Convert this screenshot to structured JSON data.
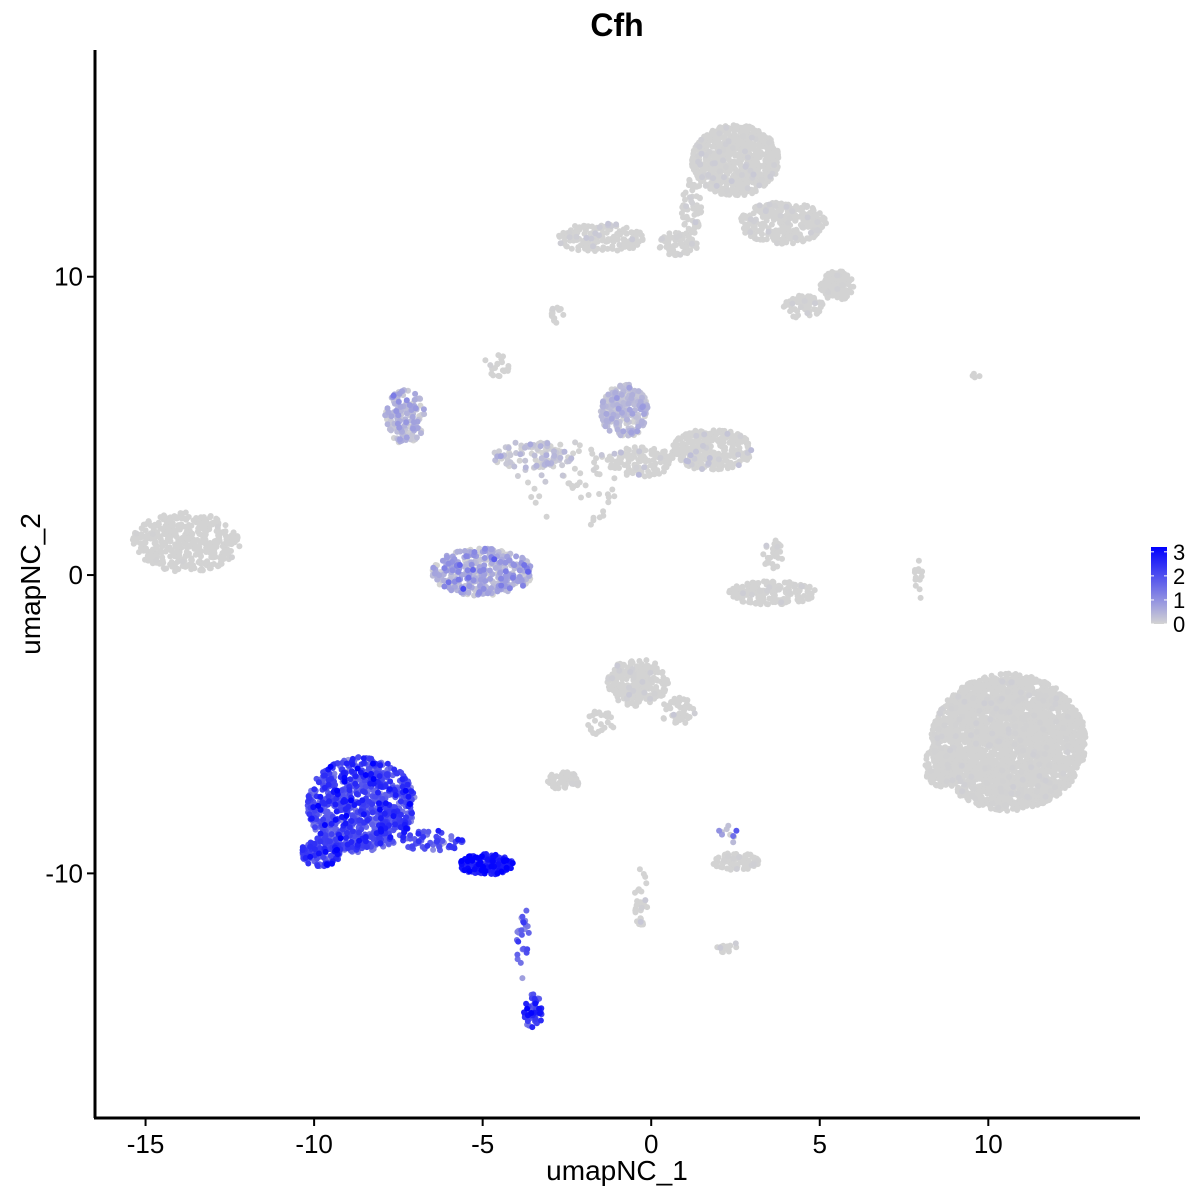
{
  "chart_data": {
    "type": "scatter",
    "title": "Cfh",
    "xlabel": "umapNC_1",
    "ylabel": "umapNC_2",
    "xlim": [
      -16.5,
      14.5
    ],
    "ylim": [
      -18.2,
      17.6
    ],
    "xticks": [
      -15,
      -10,
      -5,
      0,
      5,
      10
    ],
    "xtick_labels": [
      "-15",
      "-10",
      "-5",
      "0",
      "5",
      "10"
    ],
    "yticks": [
      -10,
      0,
      10
    ],
    "ytick_labels": [
      "-10",
      "0",
      "10"
    ],
    "grid": false,
    "legend": {
      "placement": "right",
      "type": "colorbar",
      "range": [
        0,
        3.2
      ],
      "ticks": [
        0,
        1,
        2,
        3
      ],
      "tick_labels": [
        "0",
        "1",
        "2",
        "3"
      ],
      "low_color": "#d3d3d3",
      "high_color": "#0000ff"
    },
    "point_color_low": "#d3d3d3",
    "point_color_high": "#0000ff",
    "clusters": [
      {
        "id": "top-right-cluster",
        "cx": 2.5,
        "cy": 13.9,
        "rx": 1.3,
        "ry": 1.2,
        "n": 700,
        "expr": 0.04
      },
      {
        "id": "top-left-arm",
        "cx": -1.5,
        "cy": 11.3,
        "rx": 1.3,
        "ry": 0.5,
        "n": 150,
        "expr": 0.1
      },
      {
        "id": "top-bridge",
        "cx": 0.8,
        "cy": 11.1,
        "rx": 0.6,
        "ry": 0.4,
        "n": 70,
        "expr": 0.03
      },
      {
        "id": "top-stem",
        "cx": 1.2,
        "cy": 12.4,
        "rx": 0.3,
        "ry": 1.0,
        "n": 60,
        "expr": 0.03
      },
      {
        "id": "top-right-arm",
        "cx": 3.9,
        "cy": 11.8,
        "rx": 1.3,
        "ry": 0.7,
        "n": 300,
        "expr": 0.03
      },
      {
        "id": "top-right-tip",
        "cx": 5.5,
        "cy": 9.7,
        "rx": 0.5,
        "ry": 0.5,
        "n": 130,
        "expr": 0.02
      },
      {
        "id": "top-right-tail",
        "cx": 4.5,
        "cy": 9.0,
        "rx": 0.6,
        "ry": 0.4,
        "n": 60,
        "expr": 0.02
      },
      {
        "id": "small-top-mid",
        "cx": -2.8,
        "cy": 8.7,
        "rx": 0.2,
        "ry": 0.3,
        "n": 15,
        "expr": 0.0
      },
      {
        "id": "left-outlier-cluster",
        "cx": -13.8,
        "cy": 1.1,
        "rx": 1.6,
        "ry": 1.0,
        "n": 400,
        "expr": 0.0
      },
      {
        "id": "upper-left-arc",
        "cx": -7.3,
        "cy": 5.3,
        "rx": 0.6,
        "ry": 0.9,
        "n": 150,
        "expr": 0.35
      },
      {
        "id": "center-arc",
        "cx": -5.0,
        "cy": 0.1,
        "rx": 1.5,
        "ry": 0.8,
        "n": 400,
        "expr": 0.5
      },
      {
        "id": "center-stem",
        "cx": -3.5,
        "cy": 4.0,
        "rx": 1.2,
        "ry": 0.5,
        "n": 100,
        "expr": 0.2
      },
      {
        "id": "center-scatter",
        "cx": -2.5,
        "cy": 3.0,
        "rx": 1.5,
        "ry": 1.5,
        "n": 60,
        "expr": 0.1
      },
      {
        "id": "upper-center-cluster",
        "cx": -0.8,
        "cy": 5.5,
        "rx": 0.7,
        "ry": 0.9,
        "n": 250,
        "expr": 0.25
      },
      {
        "id": "upper-center-right",
        "cx": 1.8,
        "cy": 4.2,
        "rx": 1.2,
        "ry": 0.7,
        "n": 300,
        "expr": 0.12
      },
      {
        "id": "upper-center-band",
        "cx": -0.3,
        "cy": 3.8,
        "rx": 1.0,
        "ry": 0.5,
        "n": 120,
        "expr": 0.15
      },
      {
        "id": "small-right-cluster",
        "cx": 3.6,
        "cy": -0.6,
        "rx": 1.3,
        "ry": 0.4,
        "n": 180,
        "expr": 0.02
      },
      {
        "id": "small-right-top",
        "cx": 3.6,
        "cy": 0.7,
        "rx": 0.3,
        "ry": 0.5,
        "n": 30,
        "expr": 0.05
      },
      {
        "id": "big-right-cluster",
        "cx": 10.6,
        "cy": -5.6,
        "rx": 2.3,
        "ry": 2.3,
        "n": 2600,
        "expr": 0.01
      },
      {
        "id": "big-right-left-edge",
        "cx": 8.6,
        "cy": -6.4,
        "rx": 0.5,
        "ry": 0.7,
        "n": 150,
        "expr": 0.01
      },
      {
        "id": "bottom-left-blob",
        "cx": -8.6,
        "cy": -7.7,
        "rx": 1.6,
        "ry": 1.6,
        "n": 850,
        "expr": 2.0
      },
      {
        "id": "bottom-left-lobe",
        "cx": -9.8,
        "cy": -9.3,
        "rx": 0.6,
        "ry": 0.5,
        "n": 120,
        "expr": 2.0
      },
      {
        "id": "bottom-left-tail",
        "cx": -4.9,
        "cy": -9.7,
        "rx": 0.8,
        "ry": 0.35,
        "n": 180,
        "expr": 2.5
      },
      {
        "id": "bottom-left-neck",
        "cx": -6.5,
        "cy": -8.9,
        "rx": 1.0,
        "ry": 0.35,
        "n": 60,
        "expr": 1.8
      },
      {
        "id": "bottom-stem",
        "cx": -3.8,
        "cy": -12.3,
        "rx": 0.2,
        "ry": 1.3,
        "n": 25,
        "expr": 1.5
      },
      {
        "id": "bottom-tip",
        "cx": -3.5,
        "cy": -14.6,
        "rx": 0.3,
        "ry": 0.6,
        "n": 50,
        "expr": 2.2
      },
      {
        "id": "lower-center-cluster",
        "cx": -0.4,
        "cy": -3.6,
        "rx": 0.9,
        "ry": 0.8,
        "n": 250,
        "expr": 0.05
      },
      {
        "id": "lower-center-arm",
        "cx": 0.8,
        "cy": -4.6,
        "rx": 0.5,
        "ry": 0.5,
        "n": 50,
        "expr": 0.1
      },
      {
        "id": "lower-center-left",
        "cx": -2.6,
        "cy": -6.9,
        "rx": 0.5,
        "ry": 0.3,
        "n": 60,
        "expr": 0.0
      },
      {
        "id": "lower-center-stem",
        "cx": -1.5,
        "cy": -5.0,
        "rx": 0.4,
        "ry": 0.5,
        "n": 25,
        "expr": 0.0
      },
      {
        "id": "lower-right-small",
        "cx": 2.5,
        "cy": -9.6,
        "rx": 0.7,
        "ry": 0.3,
        "n": 80,
        "expr": 0.02
      },
      {
        "id": "lower-right-stem",
        "cx": 2.3,
        "cy": -8.6,
        "rx": 0.3,
        "ry": 0.4,
        "n": 10,
        "expr": 0.8
      },
      {
        "id": "lower-center-stem2",
        "cx": -0.3,
        "cy": -10.8,
        "rx": 0.2,
        "ry": 1.2,
        "n": 30,
        "expr": 0.1
      },
      {
        "id": "lower-right-tiny",
        "cx": 2.3,
        "cy": -12.5,
        "rx": 0.4,
        "ry": 0.2,
        "n": 15,
        "expr": 0.05
      },
      {
        "id": "right-stem",
        "cx": 7.9,
        "cy": -0.2,
        "rx": 0.2,
        "ry": 0.7,
        "n": 15,
        "expr": 0.0
      },
      {
        "id": "right-small-dots",
        "cx": 9.5,
        "cy": 6.7,
        "rx": 0.3,
        "ry": 0.1,
        "n": 4,
        "expr": 0.0
      },
      {
        "id": "left-stem-upper",
        "cx": -4.6,
        "cy": 7.0,
        "rx": 0.4,
        "ry": 0.4,
        "n": 20,
        "expr": 0.0
      }
    ]
  }
}
